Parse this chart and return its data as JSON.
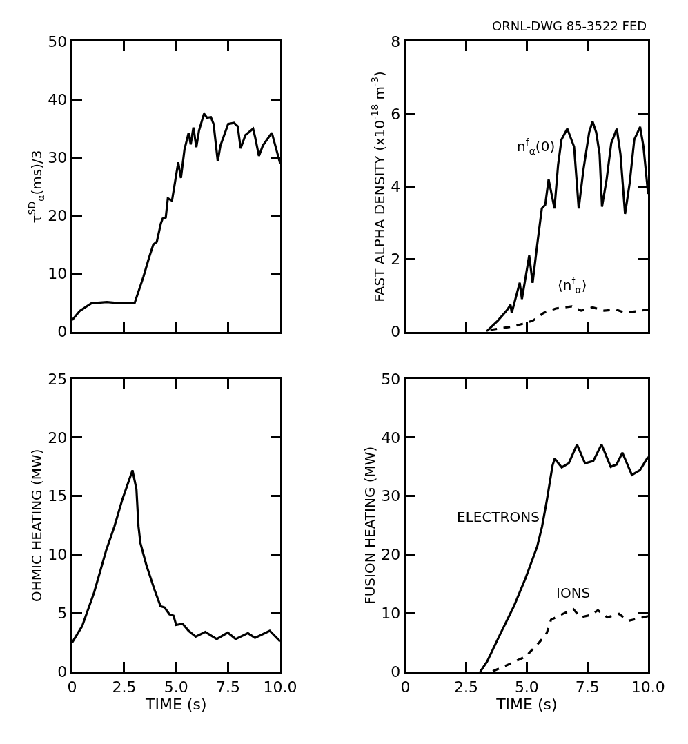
{
  "chart_data": [
    {
      "type": "line",
      "ylabel": "τ$^{SD}$$_{α}$(ms)/3",
      "xlim": [
        0,
        10
      ],
      "ylim": [
        0,
        50
      ],
      "xticks": [
        {
          "value": 2.5,
          "label": null
        },
        {
          "value": 5,
          "label": null
        },
        {
          "value": 7.5,
          "label": null
        }
      ],
      "yticks": [
        0,
        10,
        20,
        30,
        40,
        50
      ],
      "tick_labels": "y",
      "grid": false,
      "legend": false,
      "series": [
        {
          "color": "#000000",
          "x": [
            0,
            0.37,
            0.93,
            1.67,
            2.3,
            3.0,
            3.43,
            3.7,
            3.9,
            4.07,
            4.26,
            4.35,
            4.5,
            4.6,
            4.8,
            5.1,
            5.23,
            5.4,
            5.6,
            5.7,
            5.83,
            5.97,
            6.1,
            6.34,
            6.48,
            6.67,
            6.8,
            7.0,
            7.13,
            7.5,
            7.78,
            7.96,
            8.1,
            8.33,
            8.7,
            8.8,
            8.98,
            9.17,
            9.6,
            10
          ],
          "values": [
            2.0,
            3.6,
            4.9,
            5.1,
            4.9,
            4.9,
            9.5,
            12.8,
            15,
            15.5,
            18.6,
            19.5,
            19.7,
            23,
            22.6,
            29.2,
            26.5,
            31.4,
            34.3,
            32.3,
            35.2,
            31.8,
            34.7,
            37.6,
            36.9,
            37,
            35.8,
            29.4,
            32.1,
            35.8,
            36,
            35.4,
            31.6,
            33.9,
            35,
            33.5,
            30.3,
            32.1,
            34.3,
            29
          ]
        }
      ]
    },
    {
      "type": "line",
      "ylabel": "FAST ALPHA DENSITY (x10$^{-18}$ m$^{-3}$)",
      "xlim": [
        0,
        10
      ],
      "ylim": [
        0,
        8
      ],
      "xticks": [
        {
          "value": 2.5,
          "label": null
        },
        {
          "value": 5,
          "label": null
        },
        {
          "value": 7.5,
          "label": null
        }
      ],
      "yticks": [
        0,
        2,
        4,
        6,
        8
      ],
      "tick_labels": "y",
      "grid": false,
      "legend": false,
      "annotations": [
        "ORNL-DWG 85-3522 FED"
      ],
      "series": [
        {
          "name": "n$^{f}$$_{α}$(0)",
          "color": "#000000",
          "line_style": "solid",
          "x": [
            3.33,
            3.8,
            4.19,
            4.33,
            4.38,
            4.71,
            4.8,
            5.1,
            5.24,
            5.43,
            5.62,
            5.76,
            5.9,
            6.14,
            6.29,
            6.43,
            6.67,
            6.95,
            7.14,
            7.33,
            7.57,
            7.71,
            7.86,
            8.0,
            8.1,
            8.29,
            8.48,
            8.71,
            8.86,
            9.05,
            9.24,
            9.43,
            9.67,
            9.81,
            10
          ],
          "values": [
            0,
            0.3,
            0.6,
            0.74,
            0.52,
            1.35,
            0.9,
            2.1,
            1.35,
            2.4,
            3.4,
            3.5,
            4.2,
            3.4,
            4.6,
            5.3,
            5.6,
            5.1,
            3.4,
            4.45,
            5.5,
            5.8,
            5.5,
            4.9,
            3.45,
            4.2,
            5.2,
            5.6,
            4.9,
            3.25,
            4.1,
            5.3,
            5.65,
            5.1,
            3.8
          ]
        },
        {
          "name": "⟨n$^{f}$$_{α}$⟩",
          "color": "#000000",
          "line_style": "dashed",
          "x": [
            3.5,
            4.48,
            5.24,
            5.7,
            6.2,
            6.86,
            7.24,
            7.71,
            8.19,
            8.67,
            9.05,
            10
          ],
          "values": [
            0.05,
            0.15,
            0.3,
            0.52,
            0.64,
            0.7,
            0.58,
            0.67,
            0.58,
            0.61,
            0.52,
            0.61
          ]
        }
      ]
    },
    {
      "type": "line",
      "xlabel": "TIME (s)",
      "ylabel": "OHMIC HEATING (MW)",
      "xlim": [
        0,
        10
      ],
      "ylim": [
        0,
        25
      ],
      "xticks": [
        0,
        2.5,
        {
          "value": 5,
          "label": "5.0"
        },
        7.5,
        {
          "value": 10,
          "label": "10.0"
        }
      ],
      "yticks": [
        0,
        5,
        10,
        15,
        20,
        25
      ],
      "grid": false,
      "legend": false,
      "series": [
        {
          "color": "#000000",
          "x": [
            0,
            0.48,
            1.06,
            1.64,
            2.03,
            2.41,
            2.9,
            3.09,
            3.19,
            3.28,
            3.57,
            3.96,
            4.25,
            4.44,
            4.68,
            4.87,
            5.0,
            5.31,
            5.6,
            5.94,
            6.4,
            6.95,
            7.48,
            7.86,
            8.45,
            8.79,
            9.5,
            10
          ],
          "values": [
            2.5,
            3.9,
            6.8,
            10.4,
            12.4,
            14.7,
            17.2,
            15.6,
            12.4,
            11.0,
            9.1,
            7.0,
            5.6,
            5.5,
            4.9,
            4.8,
            4.0,
            4.1,
            3.5,
            3.0,
            3.4,
            2.8,
            3.35,
            2.8,
            3.3,
            2.9,
            3.5,
            2.6
          ]
        }
      ]
    },
    {
      "type": "line",
      "xlabel": "TIME (s)",
      "ylabel": "FUSION HEATING (MW)",
      "xlim": [
        0,
        10
      ],
      "ylim": [
        0,
        50
      ],
      "xticks": [
        0,
        2.5,
        {
          "value": 5,
          "label": "5.0"
        },
        7.5,
        {
          "value": 10,
          "label": "10.0"
        }
      ],
      "yticks": [
        0,
        10,
        20,
        30,
        40,
        50
      ],
      "grid": false,
      "legend": false,
      "series": [
        {
          "name": "ELECTRONS",
          "color": "#000000",
          "line_style": "solid",
          "x": [
            3.08,
            3.37,
            3.9,
            4.47,
            4.95,
            5.43,
            5.63,
            5.82,
            6.06,
            6.15,
            6.44,
            6.73,
            7.07,
            7.4,
            7.74,
            8.08,
            8.46,
            8.7,
            8.94,
            9.33,
            9.66,
            10
          ],
          "values": [
            0,
            1.8,
            6.4,
            11.2,
            16,
            21.4,
            24.8,
            29.1,
            35.2,
            36.4,
            34.9,
            35.6,
            38.8,
            35.6,
            36,
            38.8,
            35.0,
            35.4,
            37.4,
            33.6,
            34.4,
            36.7
          ]
        },
        {
          "name": "IONS",
          "color": "#000000",
          "line_style": "dashed",
          "x": [
            3.6,
            4.38,
            4.95,
            5.53,
            5.82,
            6.0,
            6.49,
            6.92,
            7.21,
            7.64,
            7.93,
            8.32,
            8.8,
            9.18,
            10
          ],
          "values": [
            0.1,
            1.5,
            2.6,
            5.1,
            6.6,
            8.9,
            9.9,
            10.7,
            9.3,
            9.7,
            10.5,
            9.3,
            9.9,
            8.7,
            9.5
          ]
        }
      ]
    }
  ]
}
